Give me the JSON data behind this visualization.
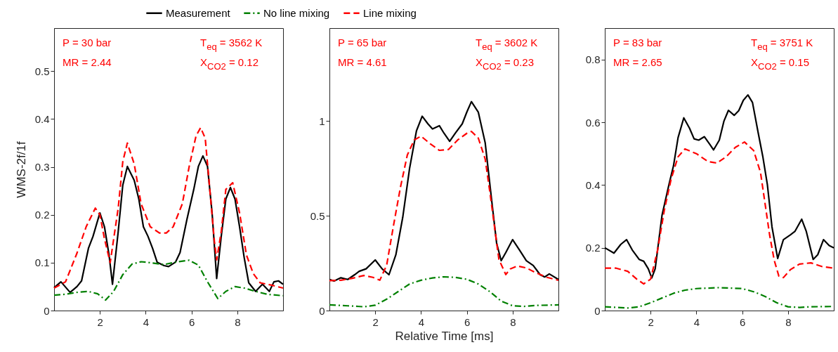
{
  "chart_data": [
    {
      "type": "line",
      "ylabel": "WMS-2f/1f",
      "legend": "top",
      "xlim": [
        0,
        10
      ],
      "xticks": [
        2,
        4,
        6,
        8
      ],
      "ylim": [
        0,
        0.59
      ],
      "yticks": [
        0,
        0.1,
        0.2,
        0.3,
        0.4,
        0.5
      ],
      "grid": false,
      "marker": "none",
      "annotations": [
        "P = 30 bar",
        "MR = 2.44",
        "T$_{eq}$ = 3562 K",
        "X$_{CO2}$ = 0.12"
      ],
      "series": [
        {
          "name": "Measurement",
          "color": "#000000",
          "line_style": "solid",
          "x": [
            0,
            0.3,
            0.7,
            1.0,
            1.2,
            1.5,
            1.7,
            2.0,
            2.2,
            2.4,
            2.55,
            2.8,
            3.0,
            3.2,
            3.5,
            3.7,
            3.9,
            4.1,
            4.3,
            4.5,
            4.8,
            5.0,
            5.3,
            5.5,
            5.8,
            6.1,
            6.3,
            6.5,
            6.7,
            6.9,
            7.1,
            7.3,
            7.5,
            7.7,
            7.9,
            8.1,
            8.3,
            8.5,
            8.8,
            9.1,
            9.4,
            9.6,
            9.8,
            10
          ],
          "values": [
            0.048,
            0.06,
            0.038,
            0.05,
            0.062,
            0.13,
            0.155,
            0.204,
            0.175,
            0.116,
            0.055,
            0.165,
            0.262,
            0.301,
            0.272,
            0.233,
            0.175,
            0.155,
            0.13,
            0.101,
            0.094,
            0.092,
            0.101,
            0.121,
            0.19,
            0.253,
            0.301,
            0.323,
            0.301,
            0.204,
            0.067,
            0.155,
            0.233,
            0.257,
            0.233,
            0.175,
            0.111,
            0.058,
            0.04,
            0.055,
            0.04,
            0.06,
            0.062,
            0.055
          ]
        },
        {
          "name": "No line mixing",
          "color": "#008000",
          "line_style": "dashdot",
          "x": [
            0,
            0.5,
            1.0,
            1.5,
            1.9,
            2.25,
            2.6,
            3.0,
            3.4,
            3.8,
            4.2,
            4.8,
            5.4,
            5.9,
            6.3,
            6.7,
            7.15,
            7.5,
            7.9,
            8.3,
            8.8,
            9.3,
            10
          ],
          "values": [
            0.032,
            0.034,
            0.038,
            0.04,
            0.035,
            0.022,
            0.04,
            0.075,
            0.097,
            0.102,
            0.1,
            0.096,
            0.102,
            0.105,
            0.095,
            0.06,
            0.025,
            0.04,
            0.05,
            0.047,
            0.04,
            0.034,
            0.031
          ]
        },
        {
          "name": "Line mixing",
          "color": "#ff0000",
          "line_style": "dashed",
          "x": [
            0,
            0.5,
            1.0,
            1.4,
            1.8,
            2.0,
            2.2,
            2.45,
            2.8,
            3.0,
            3.2,
            3.5,
            3.8,
            4.2,
            4.6,
            4.9,
            5.2,
            5.6,
            5.9,
            6.2,
            6.4,
            6.6,
            6.8,
            7.0,
            7.1,
            7.3,
            7.5,
            7.8,
            8.1,
            8.4,
            8.7,
            9.0,
            9.5,
            10
          ],
          "values": [
            0.047,
            0.06,
            0.12,
            0.175,
            0.214,
            0.2,
            0.15,
            0.1,
            0.214,
            0.311,
            0.35,
            0.306,
            0.223,
            0.175,
            0.162,
            0.162,
            0.175,
            0.223,
            0.301,
            0.365,
            0.382,
            0.36,
            0.253,
            0.145,
            0.106,
            0.165,
            0.253,
            0.267,
            0.204,
            0.116,
            0.077,
            0.058,
            0.053,
            0.047
          ]
        }
      ]
    },
    {
      "type": "line",
      "xlabel": "Relative Time [ms]",
      "xlim": [
        0,
        10
      ],
      "xticks": [
        2,
        4,
        6,
        8
      ],
      "ylim": [
        0,
        1.49
      ],
      "yticks": [
        0,
        0.5,
        1
      ],
      "grid": false,
      "marker": "none",
      "annotations": [
        "P = 65 bar",
        "MR = 4.61",
        "T$_{eq}$ = 3602 K",
        "X$_{CO2}$ = 0.23"
      ],
      "series": [
        {
          "color": "#000000",
          "line_style": "solid",
          "x": [
            0,
            0.2,
            0.5,
            0.8,
            1.1,
            1.3,
            1.6,
            2.0,
            2.3,
            2.6,
            2.9,
            3.2,
            3.5,
            3.8,
            4.05,
            4.3,
            4.5,
            4.8,
            5.0,
            5.25,
            5.5,
            5.8,
            6.0,
            6.2,
            6.5,
            6.8,
            7.1,
            7.3,
            7.5,
            7.7,
            8.0,
            8.3,
            8.6,
            8.9,
            9.2,
            9.4,
            9.6,
            10
          ],
          "values": [
            0.164,
            0.156,
            0.173,
            0.164,
            0.189,
            0.207,
            0.22,
            0.267,
            0.22,
            0.189,
            0.294,
            0.491,
            0.75,
            0.948,
            1.025,
            0.985,
            0.958,
            0.975,
            0.936,
            0.893,
            0.936,
            0.985,
            1.047,
            1.102,
            1.047,
            0.886,
            0.565,
            0.356,
            0.263,
            0.306,
            0.374,
            0.319,
            0.263,
            0.238,
            0.189,
            0.177,
            0.193,
            0.164
          ]
        },
        {
          "color": "#008000",
          "line_style": "dashdot",
          "x": [
            0,
            0.8,
            1.5,
            2.0,
            2.5,
            3.0,
            3.5,
            4.0,
            4.5,
            5.0,
            5.5,
            6.0,
            6.5,
            7.0,
            7.5,
            8.0,
            8.5,
            9.0,
            10
          ],
          "values": [
            0.03,
            0.025,
            0.02,
            0.028,
            0.06,
            0.1,
            0.14,
            0.16,
            0.172,
            0.178,
            0.175,
            0.165,
            0.14,
            0.1,
            0.05,
            0.025,
            0.022,
            0.027,
            0.03
          ]
        },
        {
          "color": "#ff0000",
          "line_style": "dashed",
          "x": [
            0,
            0.5,
            1.0,
            1.5,
            1.9,
            2.2,
            2.5,
            2.8,
            3.1,
            3.4,
            3.7,
            4.0,
            4.4,
            4.8,
            5.2,
            5.6,
            6.0,
            6.2,
            6.5,
            6.8,
            7.0,
            7.2,
            7.4,
            7.7,
            7.9,
            8.2,
            8.6,
            9.0,
            9.5,
            10
          ],
          "values": [
            0.158,
            0.16,
            0.17,
            0.185,
            0.175,
            0.16,
            0.24,
            0.45,
            0.65,
            0.82,
            0.9,
            0.92,
            0.88,
            0.845,
            0.85,
            0.9,
            0.935,
            0.945,
            0.91,
            0.8,
            0.63,
            0.45,
            0.27,
            0.19,
            0.22,
            0.235,
            0.225,
            0.2,
            0.175,
            0.16
          ]
        }
      ]
    },
    {
      "type": "line",
      "xlim": [
        0,
        10
      ],
      "xticks": [
        2,
        4,
        6,
        8
      ],
      "ylim": [
        0,
        0.9
      ],
      "yticks": [
        0,
        0.2,
        0.4,
        0.6,
        0.8
      ],
      "grid": false,
      "marker": "none",
      "annotations": [
        "P = 83 bar",
        "MR = 2.65",
        "T$_{eq}$ = 3751 K",
        "X$_{CO2}$ = 0.15"
      ],
      "series": [
        {
          "color": "#000000",
          "line_style": "solid",
          "x": [
            0,
            0.4,
            0.7,
            0.95,
            1.2,
            1.5,
            1.7,
            1.9,
            2.05,
            2.2,
            2.5,
            2.8,
            3.0,
            3.2,
            3.45,
            3.7,
            3.9,
            4.1,
            4.35,
            4.6,
            4.75,
            5.0,
            5.2,
            5.4,
            5.65,
            5.85,
            6.05,
            6.25,
            6.45,
            6.7,
            6.9,
            7.1,
            7.3,
            7.55,
            7.8,
            8.1,
            8.3,
            8.6,
            8.8,
            9.1,
            9.3,
            9.55,
            9.8,
            10
          ],
          "values": [
            0.2,
            0.183,
            0.211,
            0.226,
            0.193,
            0.163,
            0.157,
            0.133,
            0.104,
            0.133,
            0.304,
            0.401,
            0.461,
            0.551,
            0.614,
            0.581,
            0.547,
            0.543,
            0.554,
            0.528,
            0.512,
            0.543,
            0.603,
            0.638,
            0.622,
            0.637,
            0.67,
            0.687,
            0.663,
            0.566,
            0.491,
            0.401,
            0.267,
            0.166,
            0.226,
            0.241,
            0.252,
            0.291,
            0.252,
            0.163,
            0.178,
            0.226,
            0.207,
            0.2
          ]
        },
        {
          "color": "#008000",
          "line_style": "dashdot",
          "x": [
            0,
            0.5,
            1.0,
            1.5,
            2.0,
            2.5,
            3.0,
            3.5,
            4.0,
            5.0,
            6.0,
            6.5,
            7.0,
            7.5,
            8.0,
            8.5,
            9.0,
            10
          ],
          "values": [
            0.012,
            0.01,
            0.008,
            0.012,
            0.025,
            0.04,
            0.055,
            0.065,
            0.07,
            0.073,
            0.07,
            0.06,
            0.045,
            0.025,
            0.012,
            0.01,
            0.012,
            0.013
          ]
        },
        {
          "color": "#ff0000",
          "line_style": "dashed",
          "x": [
            0,
            0.5,
            1.0,
            1.4,
            1.7,
            2.0,
            2.3,
            2.6,
            2.9,
            3.2,
            3.5,
            4.0,
            4.5,
            4.9,
            5.3,
            5.7,
            6.1,
            6.5,
            6.8,
            7.0,
            7.2,
            7.4,
            7.6,
            7.8,
            8.1,
            8.5,
            9.0,
            9.5,
            10
          ],
          "values": [
            0.135,
            0.135,
            0.125,
            0.1,
            0.085,
            0.1,
            0.19,
            0.32,
            0.42,
            0.49,
            0.515,
            0.5,
            0.475,
            0.47,
            0.49,
            0.52,
            0.537,
            0.51,
            0.44,
            0.34,
            0.24,
            0.16,
            0.11,
            0.105,
            0.13,
            0.148,
            0.152,
            0.14,
            0.135
          ]
        }
      ]
    }
  ]
}
